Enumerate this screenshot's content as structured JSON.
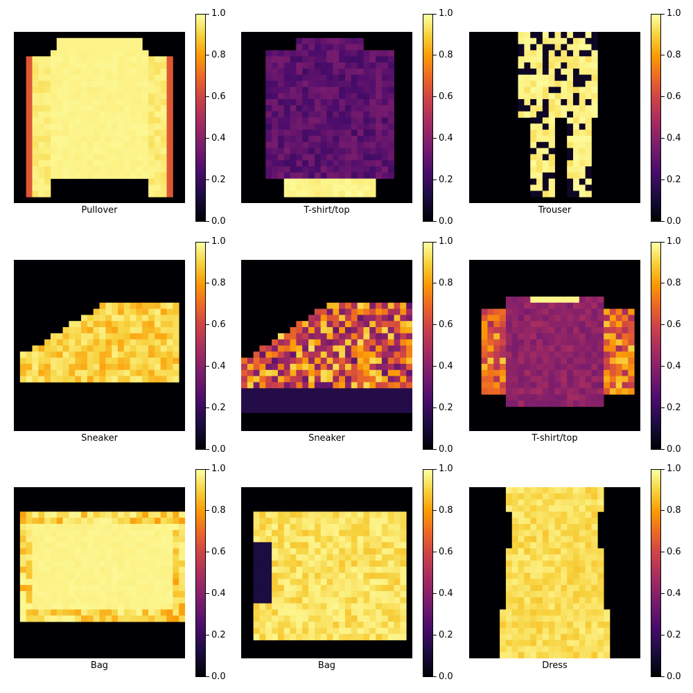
{
  "colormap": "inferno",
  "colorbar_ticks": [
    "0.0",
    "0.2",
    "0.4",
    "0.6",
    "0.8",
    "1.0"
  ],
  "chart_data": [
    {
      "type": "heatmap",
      "xlabel": "Pullover",
      "colorbar_range": [
        0.0,
        1.0
      ],
      "shape": "pullover"
    },
    {
      "type": "heatmap",
      "xlabel": "T-shirt/top",
      "colorbar_range": [
        0.0,
        1.0
      ],
      "shape": "shirt"
    },
    {
      "type": "heatmap",
      "xlabel": "Trouser",
      "colorbar_range": [
        0.0,
        1.0
      ],
      "shape": "trouser"
    },
    {
      "type": "heatmap",
      "xlabel": "Sneaker",
      "colorbar_range": [
        0.0,
        1.0
      ],
      "shape": "sneaker1"
    },
    {
      "type": "heatmap",
      "xlabel": "Sneaker",
      "colorbar_range": [
        0.0,
        1.0
      ],
      "shape": "sneaker2"
    },
    {
      "type": "heatmap",
      "xlabel": "T-shirt/top",
      "colorbar_range": [
        0.0,
        1.0
      ],
      "shape": "tshirt2"
    },
    {
      "type": "heatmap",
      "xlabel": "Bag",
      "colorbar_range": [
        0.0,
        1.0
      ],
      "shape": "bag1"
    },
    {
      "type": "heatmap",
      "xlabel": "Bag",
      "colorbar_range": [
        0.0,
        1.0
      ],
      "shape": "bag2"
    },
    {
      "type": "heatmap",
      "xlabel": "Dress",
      "colorbar_range": [
        0.0,
        1.0
      ],
      "shape": "dress"
    }
  ]
}
